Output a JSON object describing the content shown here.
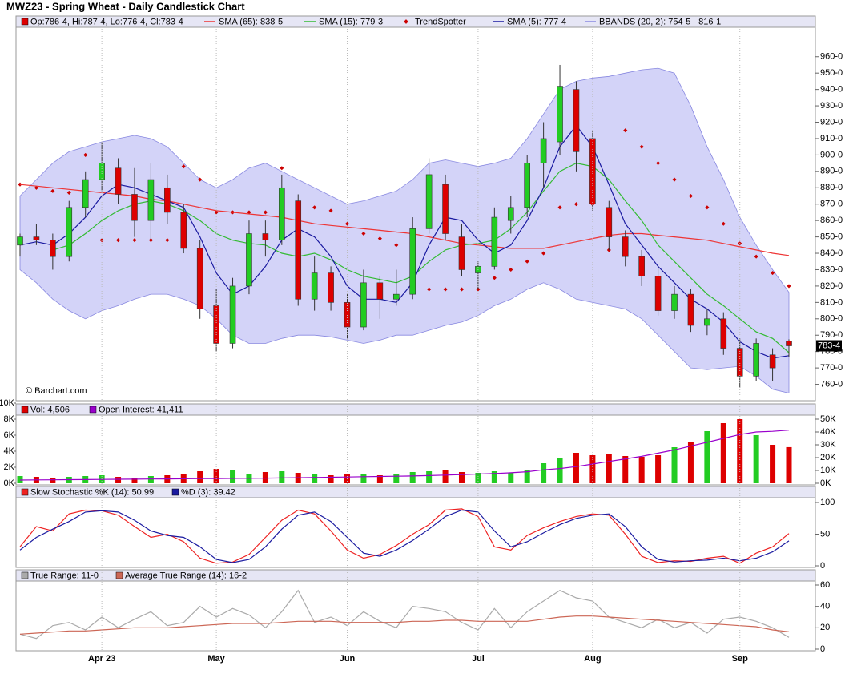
{
  "chart_data": [
    {
      "type": "candlestick",
      "title": "MWZ23 - Spring Wheat - Daily Candlestick Chart",
      "legend_label": "Op:786-4, Hi:787-4, Lo:776-4, Cl:783-4",
      "up_color": "#22cc22",
      "down_color": "#dd0000",
      "open": [
        845,
        850,
        848,
        838,
        868,
        885,
        892,
        876,
        860,
        880,
        865,
        843,
        808,
        785,
        820,
        852,
        848,
        872,
        812,
        828,
        810,
        795,
        822,
        812,
        815,
        855,
        882,
        850,
        828,
        832,
        860,
        868,
        895,
        908,
        940,
        910,
        868,
        850,
        838,
        826,
        805,
        815,
        796,
        800,
        782,
        765,
        778,
        786.5
      ],
      "high": [
        852,
        858,
        852,
        872,
        890,
        908,
        898,
        892,
        895,
        888,
        870,
        848,
        818,
        825,
        860,
        860,
        888,
        876,
        838,
        832,
        815,
        830,
        826,
        830,
        862,
        898,
        888,
        858,
        835,
        868,
        875,
        900,
        920,
        955,
        945,
        915,
        872,
        854,
        842,
        832,
        820,
        818,
        806,
        804,
        788,
        788,
        782,
        787.5
      ],
      "low": [
        838,
        845,
        830,
        835,
        862,
        878,
        870,
        850,
        848,
        858,
        840,
        800,
        780,
        782,
        815,
        838,
        845,
        808,
        805,
        805,
        788,
        793,
        800,
        808,
        812,
        852,
        848,
        826,
        818,
        830,
        852,
        862,
        880,
        900,
        890,
        866,
        842,
        832,
        820,
        802,
        800,
        792,
        790,
        778,
        758,
        762,
        762,
        776.5
      ],
      "close": [
        850,
        848,
        838,
        868,
        885,
        895,
        876,
        860,
        885,
        865,
        843,
        806,
        785,
        820,
        852,
        848,
        880,
        812,
        828,
        810,
        795,
        822,
        812,
        815,
        855,
        888,
        852,
        830,
        832,
        862,
        868,
        895,
        910,
        942,
        902,
        870,
        850,
        838,
        826,
        805,
        815,
        796,
        800,
        782,
        765,
        785,
        770,
        783.5
      ],
      "series": [
        {
          "name": "SMA (65): 838-5",
          "color": "#ee3333",
          "values": [
            882,
            881,
            880,
            879,
            878,
            877,
            876,
            875,
            873,
            872,
            870,
            868,
            866,
            865,
            864,
            863,
            862,
            860,
            858,
            857,
            856,
            855,
            854,
            853,
            852,
            850,
            848,
            846,
            845,
            844,
            843,
            843,
            843,
            845,
            847,
            849,
            851,
            852,
            852,
            851,
            850,
            849,
            848,
            846,
            844,
            842,
            840,
            838.625
          ]
        },
        {
          "name": "SMA (15): 779-3",
          "color": "#33bb33",
          "values": [
            null,
            null,
            842,
            845,
            852,
            860,
            866,
            870,
            872,
            870,
            866,
            860,
            852,
            848,
            846,
            845,
            840,
            838,
            840,
            836,
            830,
            826,
            824,
            822,
            826,
            835,
            842,
            845,
            846,
            848,
            855,
            865,
            878,
            890,
            895,
            893,
            885,
            872,
            860,
            845,
            835,
            825,
            815,
            808,
            800,
            792,
            788,
            779.375
          ]
        },
        {
          "name": "TrendSpotter",
          "color": "#cc0000",
          "style": "dots",
          "values": [
            882,
            880,
            878,
            877,
            900,
            848,
            848,
            848,
            848,
            848,
            893,
            885,
            865,
            865,
            865,
            865,
            892,
            820,
            868,
            866,
            858,
            852,
            849,
            845,
            828,
            818,
            818,
            818,
            818,
            825,
            830,
            835,
            840,
            868,
            870,
            870,
            842,
            915,
            905,
            895,
            885,
            875,
            868,
            858,
            846,
            838,
            828,
            820
          ]
        },
        {
          "name": "SMA (5): 777-4",
          "color": "#1a1aa0",
          "values": [
            845,
            847,
            845,
            852,
            862,
            875,
            882,
            880,
            876,
            872,
            868,
            850,
            828,
            815,
            820,
            832,
            848,
            855,
            850,
            838,
            820,
            812,
            812,
            810,
            822,
            845,
            862,
            860,
            848,
            840,
            845,
            860,
            880,
            905,
            918,
            905,
            882,
            858,
            845,
            832,
            822,
            812,
            806,
            798,
            786,
            780,
            776,
            777.5
          ]
        }
      ],
      "bands": {
        "name": "BBANDS (20, 2): 754-5 - 816-1",
        "color": "#8888e0",
        "upper": [
          875,
          885,
          895,
          902,
          905,
          908,
          910,
          912,
          910,
          905,
          895,
          885,
          880,
          885,
          892,
          895,
          890,
          885,
          880,
          875,
          870,
          872,
          875,
          878,
          885,
          895,
          897,
          895,
          893,
          895,
          898,
          910,
          925,
          940,
          945,
          947,
          948,
          950,
          952,
          953,
          950,
          930,
          905,
          885,
          862,
          845,
          830,
          816.125
        ],
        "lower": [
          830,
          822,
          812,
          805,
          800,
          805,
          808,
          812,
          815,
          815,
          812,
          808,
          800,
          790,
          785,
          785,
          788,
          790,
          790,
          789,
          787,
          785,
          787,
          790,
          790,
          793,
          796,
          798,
          802,
          808,
          812,
          818,
          822,
          818,
          812,
          810,
          808,
          806,
          800,
          790,
          780,
          770,
          769,
          770,
          771,
          765,
          757,
          754.625
        ]
      },
      "ylim": [
        750,
        977
      ],
      "yticks": [
        {
          "value": 760,
          "label": "760-0"
        },
        {
          "value": 770,
          "label": "770-0"
        },
        {
          "value": 780,
          "label": "780-0"
        },
        {
          "value": 790,
          "label": "790-0"
        },
        {
          "value": 800,
          "label": "800-0"
        },
        {
          "value": 810,
          "label": "810-0"
        },
        {
          "value": 820,
          "label": "820-0"
        },
        {
          "value": 830,
          "label": "830-0"
        },
        {
          "value": 840,
          "label": "840-0"
        },
        {
          "value": 850,
          "label": "850-0"
        },
        {
          "value": 860,
          "label": "860-0"
        },
        {
          "value": 870,
          "label": "870-0"
        },
        {
          "value": 880,
          "label": "880-0"
        },
        {
          "value": 890,
          "label": "890-0"
        },
        {
          "value": 900,
          "label": "900-0"
        },
        {
          "value": 910,
          "label": "910-0"
        },
        {
          "value": 920,
          "label": "920-0"
        },
        {
          "value": 930,
          "label": "930-0"
        },
        {
          "value": 940,
          "label": "940-0"
        },
        {
          "value": 950,
          "label": "950-0"
        },
        {
          "value": 960,
          "label": "960-0"
        }
      ],
      "last_price": {
        "value": 783.5,
        "label": "783-4"
      },
      "watermark": "© Barchart.com"
    },
    {
      "type": "bar",
      "series": [
        {
          "name": "Vol: 4,506",
          "color": "#dd0000",
          "values": [
            900,
            800,
            700,
            800,
            900,
            1000,
            800,
            700,
            900,
            1000,
            1100,
            1500,
            1800,
            1600,
            1200,
            1400,
            1500,
            1300,
            1100,
            1000,
            1200,
            1100,
            1000,
            1200,
            1400,
            1500,
            1600,
            1400,
            1300,
            1500,
            1300,
            1600,
            2500,
            3200,
            3800,
            3500,
            3600,
            3400,
            3300,
            3500,
            4500,
            5200,
            6500,
            7500,
            8000,
            6000,
            4800,
            4506
          ]
        },
        {
          "name": "Open Interest: 41,411",
          "color": "#9900cc",
          "axis": "y2",
          "values": [
            2500,
            2600,
            2700,
            2800,
            2900,
            3000,
            3100,
            3200,
            3300,
            3400,
            3500,
            3600,
            3700,
            3800,
            3900,
            4000,
            4100,
            4300,
            4500,
            4700,
            4900,
            5100,
            5300,
            5500,
            5700,
            6000,
            6400,
            6800,
            7200,
            7600,
            8200,
            9000,
            10500,
            11500,
            13000,
            15000,
            17000,
            19000,
            21000,
            23500,
            26000,
            29000,
            32000,
            35000,
            38000,
            40000,
            40500,
            41411
          ]
        }
      ],
      "ylim": [
        0,
        10000
      ],
      "yticks": [
        {
          "value": 0,
          "label": "0K"
        },
        {
          "value": 2000,
          "label": "2K"
        },
        {
          "value": 4000,
          "label": "4K"
        },
        {
          "value": 6000,
          "label": "6K"
        },
        {
          "value": 8000,
          "label": "8K"
        },
        {
          "value": 10000,
          "label": "10K"
        }
      ],
      "y2lim": [
        0,
        62500
      ],
      "y2ticks": [
        {
          "value": 0,
          "label": "0K"
        },
        {
          "value": 10000,
          "label": "10K"
        },
        {
          "value": 20000,
          "label": "20K"
        },
        {
          "value": 30000,
          "label": "30K"
        },
        {
          "value": 40000,
          "label": "40K"
        },
        {
          "value": 50000,
          "label": "50K"
        }
      ]
    },
    {
      "type": "line",
      "series": [
        {
          "name": "Slow Stochastic %K (14): 50.99",
          "color": "#ee2222",
          "values": [
            30,
            62,
            55,
            82,
            88,
            87,
            80,
            62,
            45,
            50,
            38,
            12,
            4,
            6,
            18,
            45,
            72,
            88,
            82,
            55,
            25,
            12,
            18,
            32,
            50,
            65,
            88,
            90,
            78,
            30,
            25,
            48,
            60,
            70,
            78,
            82,
            80,
            50,
            15,
            5,
            8,
            7,
            12,
            15,
            4,
            20,
            30,
            50.99
          ]
        },
        {
          "name": "%D (3): 39.42",
          "color": "#1a1aa0",
          "values": [
            25,
            45,
            58,
            70,
            85,
            87,
            85,
            72,
            55,
            48,
            45,
            30,
            10,
            5,
            10,
            30,
            58,
            80,
            85,
            70,
            45,
            20,
            15,
            25,
            40,
            58,
            78,
            88,
            85,
            55,
            30,
            38,
            52,
            65,
            75,
            80,
            82,
            62,
            30,
            10,
            6,
            8,
            9,
            12,
            8,
            12,
            22,
            39.42
          ]
        }
      ],
      "ylim": [
        0,
        100
      ],
      "yticks": [
        0,
        50,
        100
      ]
    },
    {
      "type": "line",
      "series": [
        {
          "name": "True Range: 11-0",
          "color": "#aaaaaa",
          "values": [
            14,
            10,
            22,
            25,
            18,
            30,
            20,
            28,
            35,
            22,
            25,
            40,
            30,
            38,
            32,
            20,
            35,
            55,
            25,
            30,
            22,
            35,
            26,
            20,
            40,
            38,
            35,
            25,
            18,
            38,
            20,
            35,
            45,
            55,
            48,
            45,
            30,
            25,
            20,
            28,
            20,
            25,
            15,
            28,
            30,
            26,
            20,
            11
          ]
        },
        {
          "name": "Average True Range (14): 16-2",
          "color": "#cc6655",
          "values": [
            14,
            15,
            16,
            17,
            17,
            18,
            19,
            20,
            20,
            20,
            21,
            22,
            23,
            24,
            24,
            24,
            25,
            26,
            26,
            26,
            25,
            25,
            25,
            25,
            26,
            26,
            27,
            27,
            26,
            26,
            26,
            26,
            28,
            30,
            31,
            31,
            30,
            29,
            28,
            27,
            26,
            25,
            24,
            23,
            22,
            21,
            18,
            16.25
          ]
        }
      ],
      "ylim": [
        0,
        60
      ],
      "yticks": [
        0,
        20,
        40,
        60
      ],
      "categories": [
        null,
        null,
        null,
        null,
        null,
        "Apr 23",
        null,
        null,
        null,
        null,
        null,
        null,
        "May",
        null,
        null,
        null,
        null,
        null,
        null,
        null,
        "Jun",
        null,
        null,
        null,
        null,
        null,
        null,
        null,
        "Jul",
        null,
        null,
        null,
        null,
        null,
        null,
        "Aug",
        null,
        null,
        null,
        null,
        null,
        null,
        null,
        null,
        "Sep",
        null,
        null,
        null
      ],
      "grid": true
    }
  ]
}
